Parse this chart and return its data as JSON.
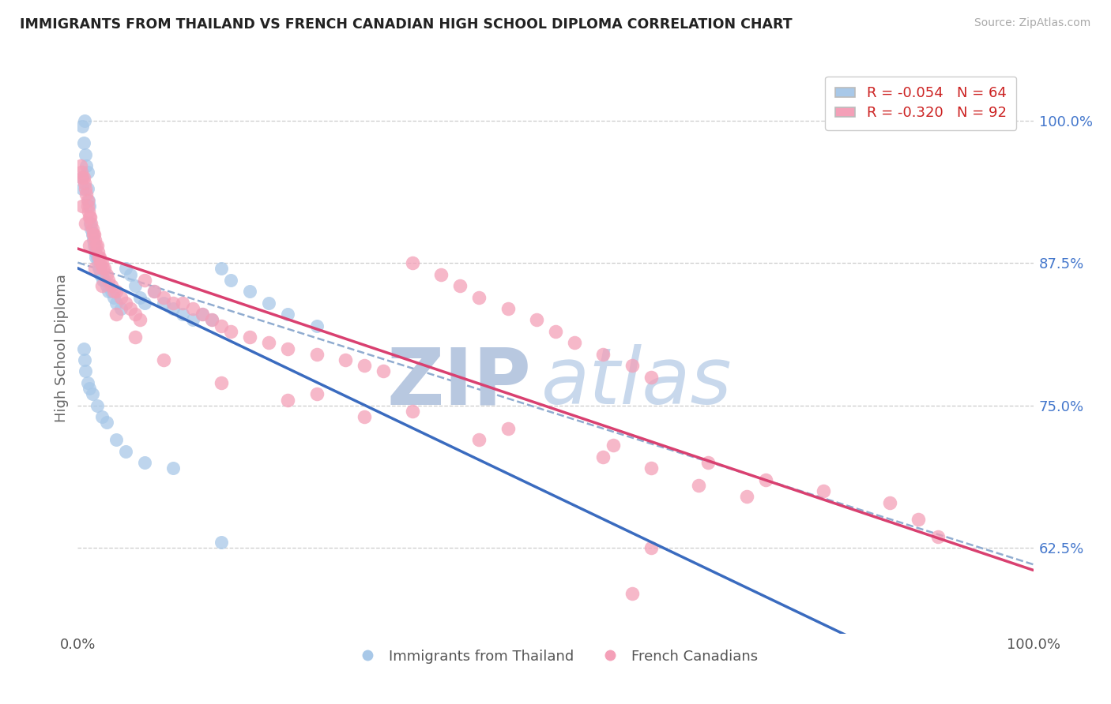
{
  "title": "IMMIGRANTS FROM THAILAND VS FRENCH CANADIAN HIGH SCHOOL DIPLOMA CORRELATION CHART",
  "source": "Source: ZipAtlas.com",
  "ylabel": "High School Diploma",
  "R_blue": -0.054,
  "N_blue": 64,
  "R_pink": -0.32,
  "N_pink": 92,
  "blue_color": "#a8c8e8",
  "pink_color": "#f4a0b8",
  "blue_line_color": "#3a6bbf",
  "pink_line_color": "#d94070",
  "dashed_line_color": "#90acd0",
  "background_color": "#ffffff",
  "watermark_ZIP_color": "#b8c8e0",
  "watermark_atlas_color": "#c8d8ec",
  "legend_blue_label": "Immigrants from Thailand",
  "legend_pink_label": "French Canadians",
  "yticks": [
    62.5,
    75.0,
    87.5,
    100.0
  ],
  "xlim": [
    0,
    100
  ],
  "ylim": [
    55,
    105
  ],
  "blue_x": [
    0.5,
    0.6,
    0.7,
    0.8,
    0.9,
    1.0,
    1.0,
    1.1,
    1.2,
    1.3,
    1.4,
    1.5,
    1.6,
    1.7,
    1.8,
    1.9,
    2.0,
    2.1,
    2.2,
    2.3,
    2.4,
    2.5,
    2.6,
    2.8,
    3.0,
    3.2,
    3.5,
    3.8,
    4.0,
    4.5,
    5.0,
    5.5,
    6.0,
    6.5,
    7.0,
    8.0,
    9.0,
    10.0,
    11.0,
    12.0,
    13.0,
    14.0,
    15.0,
    16.0,
    18.0,
    20.0,
    22.0,
    25.0,
    0.4,
    0.5,
    0.6,
    0.7,
    0.8,
    1.0,
    1.2,
    1.5,
    2.0,
    2.5,
    3.0,
    4.0,
    5.0,
    7.0,
    10.0,
    15.0
  ],
  "blue_y": [
    99.5,
    98.0,
    100.0,
    97.0,
    96.0,
    95.5,
    94.0,
    93.0,
    92.5,
    91.0,
    90.5,
    90.0,
    89.5,
    89.0,
    88.5,
    88.0,
    88.0,
    87.5,
    87.0,
    87.0,
    86.5,
    86.5,
    86.0,
    86.0,
    85.5,
    85.0,
    85.0,
    84.5,
    84.0,
    83.5,
    87.0,
    86.5,
    85.5,
    84.5,
    84.0,
    85.0,
    84.0,
    83.5,
    83.0,
    82.5,
    83.0,
    82.5,
    87.0,
    86.0,
    85.0,
    84.0,
    83.0,
    82.0,
    95.0,
    94.0,
    80.0,
    79.0,
    78.0,
    77.0,
    76.5,
    76.0,
    75.0,
    74.0,
    73.5,
    72.0,
    71.0,
    70.0,
    69.5,
    63.0
  ],
  "pink_x": [
    0.3,
    0.4,
    0.5,
    0.6,
    0.7,
    0.8,
    0.9,
    1.0,
    1.0,
    1.1,
    1.2,
    1.3,
    1.4,
    1.5,
    1.6,
    1.7,
    1.8,
    1.9,
    2.0,
    2.1,
    2.2,
    2.3,
    2.4,
    2.5,
    2.6,
    2.8,
    3.0,
    3.2,
    3.5,
    3.8,
    4.0,
    4.5,
    5.0,
    5.5,
    6.0,
    6.5,
    7.0,
    8.0,
    9.0,
    10.0,
    11.0,
    12.0,
    13.0,
    14.0,
    15.0,
    16.0,
    18.0,
    20.0,
    22.0,
    25.0,
    28.0,
    30.0,
    32.0,
    35.0,
    38.0,
    40.0,
    42.0,
    45.0,
    48.0,
    50.0,
    52.0,
    55.0,
    58.0,
    60.0,
    0.5,
    0.8,
    1.2,
    1.8,
    2.5,
    4.0,
    6.0,
    9.0,
    15.0,
    22.0,
    30.0,
    42.0,
    55.0,
    60.0,
    65.0,
    70.0,
    25.0,
    35.0,
    45.0,
    56.0,
    66.0,
    72.0,
    78.0,
    85.0,
    88.0,
    90.0,
    60.0,
    58.0
  ],
  "pink_y": [
    96.0,
    95.5,
    95.0,
    95.0,
    94.5,
    94.0,
    93.5,
    93.0,
    92.5,
    92.0,
    91.5,
    91.5,
    91.0,
    90.5,
    90.0,
    90.0,
    89.5,
    89.0,
    89.0,
    88.5,
    88.0,
    88.0,
    87.5,
    87.5,
    87.0,
    87.0,
    86.5,
    86.0,
    85.5,
    85.0,
    85.0,
    84.5,
    84.0,
    83.5,
    83.0,
    82.5,
    86.0,
    85.0,
    84.5,
    84.0,
    84.0,
    83.5,
    83.0,
    82.5,
    82.0,
    81.5,
    81.0,
    80.5,
    80.0,
    79.5,
    79.0,
    78.5,
    78.0,
    87.5,
    86.5,
    85.5,
    84.5,
    83.5,
    82.5,
    81.5,
    80.5,
    79.5,
    78.5,
    77.5,
    92.5,
    91.0,
    89.0,
    87.0,
    85.5,
    83.0,
    81.0,
    79.0,
    77.0,
    75.5,
    74.0,
    72.0,
    70.5,
    69.5,
    68.0,
    67.0,
    76.0,
    74.5,
    73.0,
    71.5,
    70.0,
    68.5,
    67.5,
    66.5,
    65.0,
    63.5,
    62.5,
    58.5
  ]
}
